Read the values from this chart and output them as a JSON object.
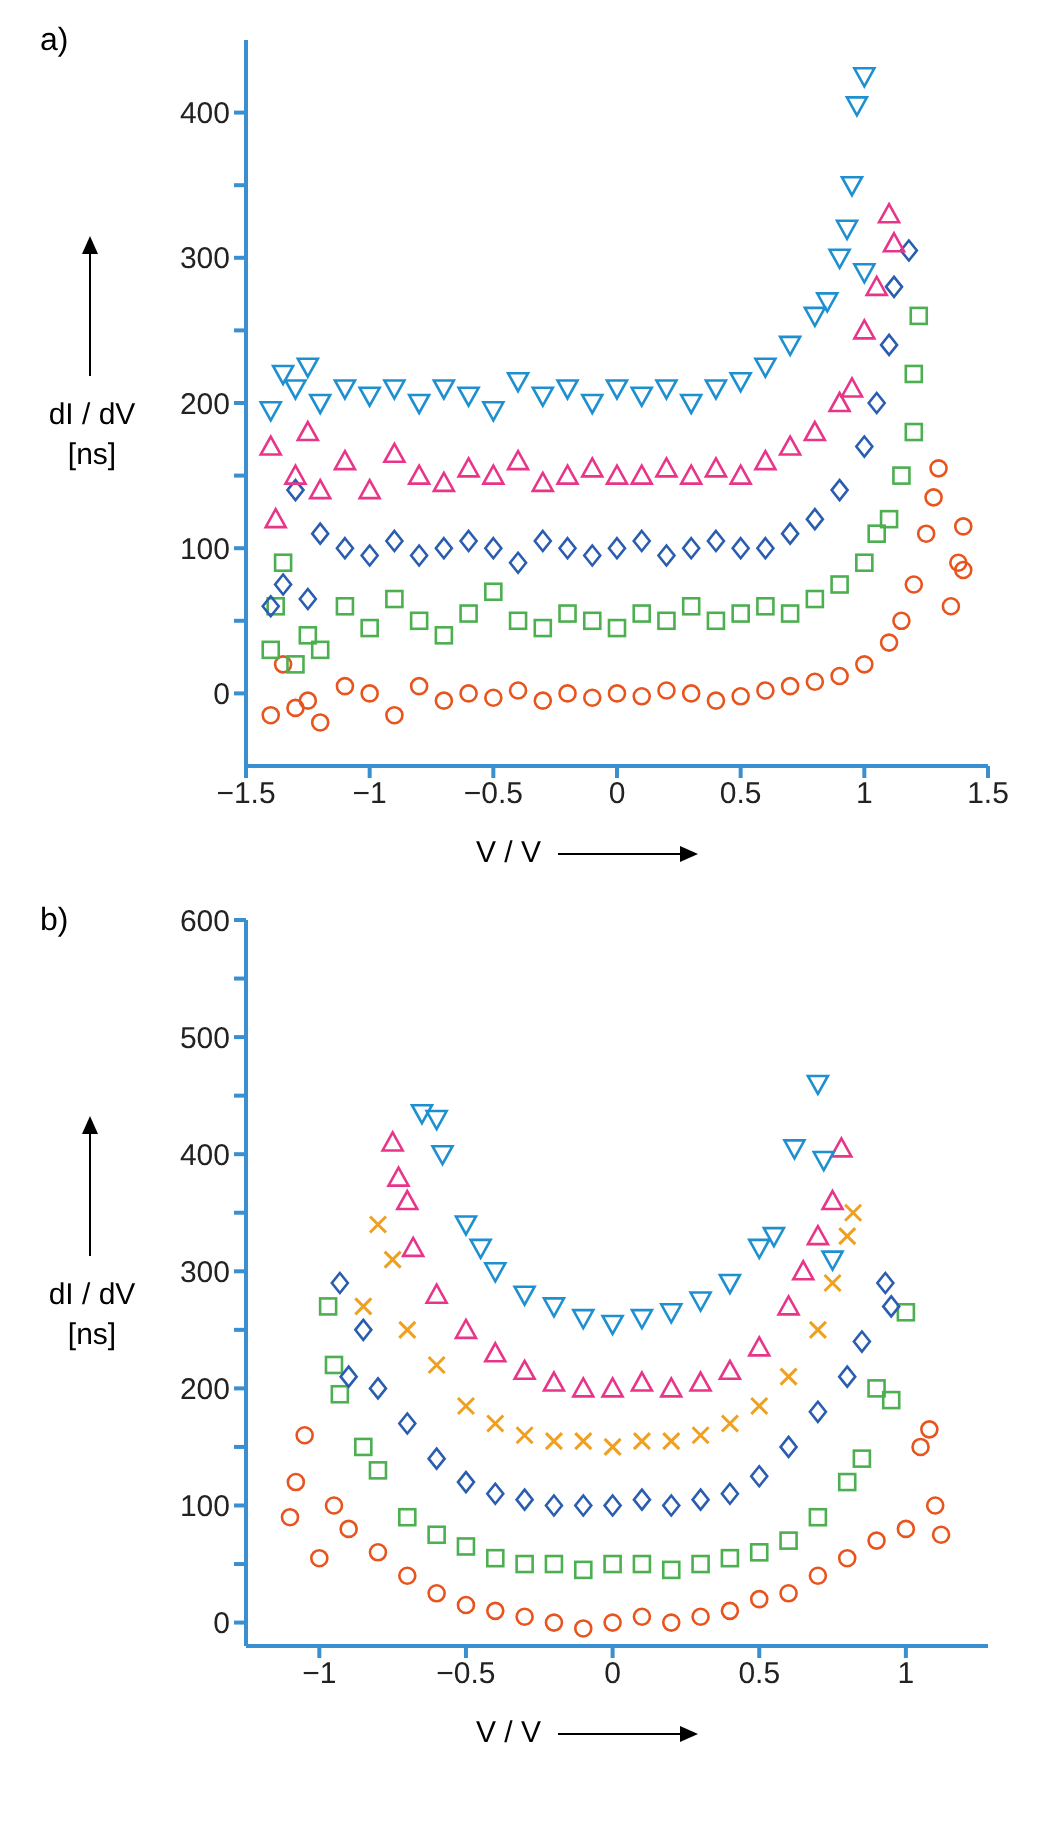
{
  "chart_data": [
    {
      "type": "scatter",
      "title": "a)",
      "xlabel": "V / V",
      "ylabel": "dI / dV [ns]",
      "xlim": [
        -1.5,
        1.5
      ],
      "ylim": [
        -50,
        450
      ],
      "xticks": [
        -1.5,
        -1,
        -0.5,
        0,
        0.5,
        1,
        1.5
      ],
      "yticks": [
        0,
        {
          "value": 50,
          "label": null
        },
        100,
        {
          "value": 150,
          "label": null
        },
        200,
        {
          "value": 250,
          "label": null
        },
        300,
        {
          "value": 350,
          "label": null
        },
        400
      ],
      "grid": false,
      "legend": false,
      "series": [
        {
          "color": "#e8541e",
          "marker": "circle",
          "x": [
            -1.4,
            -1.35,
            -1.3,
            -1.25,
            -1.2,
            -1.1,
            -1,
            -0.9,
            -0.8,
            -0.7,
            -0.6,
            -0.5,
            -0.4,
            -0.3,
            -0.2,
            -0.1,
            0,
            0.1,
            0.2,
            0.3,
            0.4,
            0.5,
            0.6,
            0.7,
            0.8,
            0.9,
            1,
            1.1,
            1.15,
            1.2,
            1.25,
            1.28,
            1.3,
            1.35,
            1.38,
            1.4,
            1.4
          ],
          "values": [
            -15,
            20,
            -10,
            -5,
            -20,
            5,
            0,
            -15,
            5,
            -5,
            0,
            -3,
            2,
            -5,
            0,
            -3,
            0,
            -2,
            2,
            0,
            -5,
            -2,
            2,
            5,
            8,
            12,
            20,
            35,
            50,
            75,
            110,
            135,
            155,
            60,
            90,
            115,
            85
          ]
        },
        {
          "color": "#4caf50",
          "marker": "square",
          "x": [
            -1.4,
            -1.38,
            -1.35,
            -1.3,
            -1.25,
            -1.2,
            -1.1,
            -1,
            -0.9,
            -0.8,
            -0.7,
            -0.6,
            -0.5,
            -0.4,
            -0.3,
            -0.2,
            -0.1,
            0,
            0.1,
            0.2,
            0.3,
            0.4,
            0.5,
            0.6,
            0.7,
            0.8,
            0.9,
            1,
            1.05,
            1.1,
            1.15,
            1.2,
            1.2,
            1.22
          ],
          "values": [
            30,
            60,
            90,
            20,
            40,
            30,
            60,
            45,
            65,
            50,
            40,
            55,
            70,
            50,
            45,
            55,
            50,
            45,
            55,
            50,
            60,
            50,
            55,
            60,
            55,
            65,
            75,
            90,
            110,
            120,
            150,
            180,
            220,
            260
          ]
        },
        {
          "color": "#2a5db0",
          "marker": "diamond",
          "x": [
            -1.4,
            -1.35,
            -1.3,
            -1.25,
            -1.2,
            -1.1,
            -1,
            -0.9,
            -0.8,
            -0.7,
            -0.6,
            -0.5,
            -0.4,
            -0.3,
            -0.2,
            -0.1,
            0,
            0.1,
            0.2,
            0.3,
            0.4,
            0.5,
            0.6,
            0.7,
            0.8,
            0.9,
            1,
            1.05,
            1.1,
            1.12,
            1.18
          ],
          "values": [
            60,
            75,
            140,
            65,
            110,
            100,
            95,
            105,
            95,
            100,
            105,
            100,
            90,
            105,
            100,
            95,
            100,
            105,
            95,
            100,
            105,
            100,
            100,
            110,
            120,
            140,
            170,
            200,
            240,
            280,
            305
          ]
        },
        {
          "color": "#e8358a",
          "marker": "triangle",
          "x": [
            -1.4,
            -1.38,
            -1.3,
            -1.25,
            -1.2,
            -1.1,
            -1,
            -0.9,
            -0.8,
            -0.7,
            -0.6,
            -0.5,
            -0.4,
            -0.3,
            -0.2,
            -0.1,
            0,
            0.1,
            0.2,
            0.3,
            0.4,
            0.5,
            0.6,
            0.7,
            0.8,
            0.9,
            0.95,
            1,
            1.05,
            1.1,
            1.12
          ],
          "values": [
            170,
            120,
            150,
            180,
            140,
            160,
            140,
            165,
            150,
            145,
            155,
            150,
            160,
            145,
            150,
            155,
            150,
            150,
            155,
            150,
            155,
            150,
            160,
            170,
            180,
            200,
            210,
            250,
            280,
            330,
            310
          ]
        },
        {
          "color": "#1e90d0",
          "marker": "triangle-down",
          "x": [
            -1.4,
            -1.35,
            -1.3,
            -1.25,
            -1.2,
            -1.1,
            -1,
            -0.9,
            -0.8,
            -0.7,
            -0.6,
            -0.5,
            -0.4,
            -0.3,
            -0.2,
            -0.1,
            0,
            0.1,
            0.2,
            0.3,
            0.4,
            0.5,
            0.6,
            0.7,
            0.8,
            0.85,
            0.9,
            0.93,
            0.95,
            0.97,
            1,
            1
          ],
          "values": [
            195,
            220,
            210,
            225,
            200,
            210,
            205,
            210,
            200,
            210,
            205,
            195,
            215,
            205,
            210,
            200,
            210,
            205,
            210,
            200,
            210,
            215,
            225,
            240,
            260,
            270,
            300,
            320,
            350,
            405,
            425,
            290
          ]
        }
      ]
    },
    {
      "type": "scatter",
      "title": "b)",
      "xlabel": "V / V",
      "ylabel": "dI / dV [ns]",
      "xlim": [
        -1.25,
        1.28
      ],
      "ylim": [
        -20,
        600
      ],
      "xticks": [
        -1,
        -0.5,
        0,
        0.5,
        1
      ],
      "yticks": [
        0,
        {
          "value": 50,
          "label": null
        },
        100,
        {
          "value": 150,
          "label": null
        },
        200,
        {
          "value": 250,
          "label": null
        },
        300,
        {
          "value": 350,
          "label": null
        },
        400,
        {
          "value": 450,
          "label": null
        },
        500,
        {
          "value": 550,
          "label": null
        },
        600
      ],
      "grid": false,
      "legend": false,
      "series": [
        {
          "color": "#e8541e",
          "marker": "circle",
          "x": [
            -1.1,
            -1.08,
            -1.05,
            -1,
            -0.95,
            -0.9,
            -0.8,
            -0.7,
            -0.6,
            -0.5,
            -0.4,
            -0.3,
            -0.2,
            -0.1,
            0,
            0.1,
            0.2,
            0.3,
            0.4,
            0.5,
            0.6,
            0.7,
            0.8,
            0.9,
            1,
            1.05,
            1.08,
            1.1,
            1.12
          ],
          "values": [
            90,
            120,
            160,
            55,
            100,
            80,
            60,
            40,
            25,
            15,
            10,
            5,
            0,
            -5,
            0,
            5,
            0,
            5,
            10,
            20,
            25,
            40,
            55,
            70,
            80,
            150,
            165,
            100,
            75
          ]
        },
        {
          "color": "#4caf50",
          "marker": "square",
          "x": [
            -0.97,
            -0.95,
            -0.93,
            -0.85,
            -0.8,
            -0.7,
            -0.6,
            -0.5,
            -0.4,
            -0.3,
            -0.2,
            -0.1,
            0,
            0.1,
            0.2,
            0.3,
            0.4,
            0.5,
            0.6,
            0.7,
            0.8,
            0.85,
            0.9,
            0.95,
            1
          ],
          "values": [
            270,
            220,
            195,
            150,
            130,
            90,
            75,
            65,
            55,
            50,
            50,
            45,
            50,
            50,
            45,
            50,
            55,
            60,
            70,
            90,
            120,
            140,
            200,
            190,
            265
          ]
        },
        {
          "color": "#2a5db0",
          "marker": "diamond",
          "x": [
            -0.93,
            -0.9,
            -0.85,
            -0.8,
            -0.7,
            -0.6,
            -0.5,
            -0.4,
            -0.3,
            -0.2,
            -0.1,
            0,
            0.1,
            0.2,
            0.3,
            0.4,
            0.5,
            0.6,
            0.7,
            0.8,
            0.85,
            0.93,
            0.95
          ],
          "values": [
            290,
            210,
            250,
            200,
            170,
            140,
            120,
            110,
            105,
            100,
            100,
            100,
            105,
            100,
            105,
            110,
            125,
            150,
            180,
            210,
            240,
            290,
            270
          ]
        },
        {
          "color": "#f0a020",
          "marker": "cross",
          "x": [
            -0.85,
            -0.8,
            -0.75,
            -0.7,
            -0.6,
            -0.5,
            -0.4,
            -0.3,
            -0.2,
            -0.1,
            0,
            0.1,
            0.2,
            0.3,
            0.4,
            0.5,
            0.6,
            0.7,
            0.75,
            0.8,
            0.82
          ],
          "values": [
            270,
            340,
            310,
            250,
            220,
            185,
            170,
            160,
            155,
            155,
            150,
            155,
            155,
            160,
            170,
            185,
            210,
            250,
            290,
            330,
            350
          ]
        },
        {
          "color": "#e8358a",
          "marker": "triangle",
          "x": [
            -0.75,
            -0.73,
            -0.7,
            -0.68,
            -0.6,
            -0.5,
            -0.4,
            -0.3,
            -0.2,
            -0.1,
            0,
            0.1,
            0.2,
            0.3,
            0.4,
            0.5,
            0.6,
            0.65,
            0.7,
            0.75,
            0.78
          ],
          "values": [
            410,
            380,
            360,
            320,
            280,
            250,
            230,
            215,
            205,
            200,
            200,
            205,
            200,
            205,
            215,
            235,
            270,
            300,
            330,
            360,
            405
          ]
        },
        {
          "color": "#1e90d0",
          "marker": "triangle-down",
          "x": [
            -0.65,
            -0.6,
            -0.58,
            -0.5,
            -0.45,
            -0.4,
            -0.3,
            -0.2,
            -0.1,
            0,
            0.1,
            0.2,
            0.3,
            0.4,
            0.5,
            0.55,
            0.62,
            0.7,
            0.72,
            0.75
          ],
          "values": [
            435,
            430,
            400,
            340,
            320,
            300,
            280,
            270,
            260,
            255,
            260,
            265,
            275,
            290,
            320,
            330,
            405,
            460,
            395,
            310
          ]
        }
      ]
    }
  ]
}
